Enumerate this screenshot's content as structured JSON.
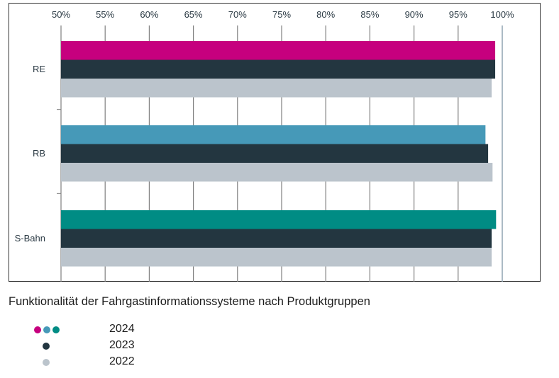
{
  "chart_data": {
    "type": "bar",
    "orientation": "horizontal",
    "title": "",
    "caption": "Funktionalität der Fahrgastinformationssysteme nach Produktgruppen",
    "xlim": [
      50,
      100
    ],
    "x_ticks": [
      50,
      55,
      60,
      65,
      70,
      75,
      80,
      85,
      90,
      95,
      100
    ],
    "x_tick_labels": [
      "50%",
      "55%",
      "60%",
      "65%",
      "70%",
      "75%",
      "80%",
      "85%",
      "90%",
      "95%",
      "100%"
    ],
    "grid": true,
    "categories": [
      "RE",
      "RB",
      "S-Bahn"
    ],
    "series": [
      {
        "name": "2024",
        "values": [
          99.2,
          98.1,
          99.3
        ],
        "colors": [
          "#c6007e",
          "#4699b8",
          "#008c84"
        ]
      },
      {
        "name": "2023",
        "values": [
          99.2,
          98.4,
          98.8
        ],
        "color": "#233640"
      },
      {
        "name": "2022",
        "values": [
          98.8,
          98.9,
          98.8
        ],
        "color": "#bbc4cc"
      }
    ],
    "legend": {
      "placement": "bottom-left",
      "items": [
        {
          "label": "2024",
          "colors": [
            "#c6007e",
            "#4699b8",
            "#008c84"
          ]
        },
        {
          "label": "2023",
          "colors": [
            "#233640"
          ]
        },
        {
          "label": "2022",
          "colors": [
            "#bbc4cc"
          ]
        }
      ]
    },
    "colors": {
      "grid": "#7f7f7f",
      "axis_100": "#8fa4b2",
      "frame": "#333333"
    }
  }
}
